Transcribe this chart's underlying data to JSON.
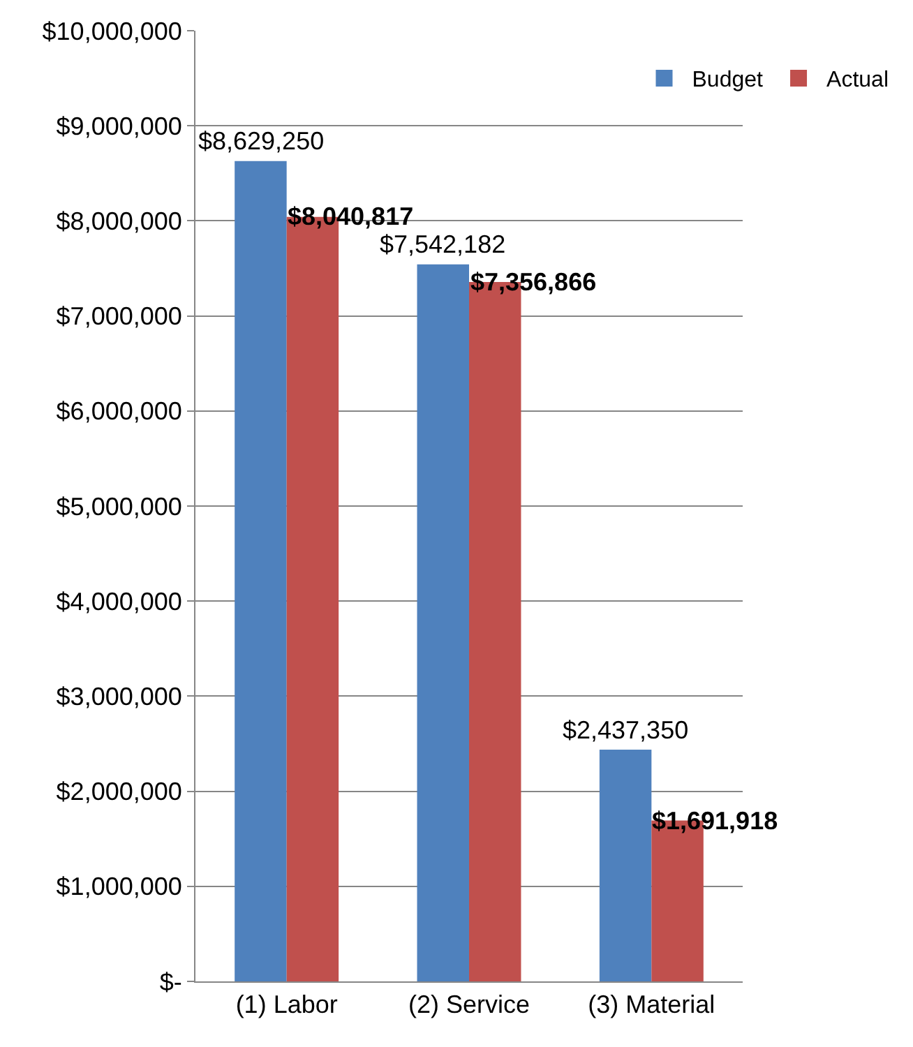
{
  "chart_data": {
    "type": "bar",
    "categories": [
      "(1) Labor",
      "(2) Service",
      "(3) Material"
    ],
    "series": [
      {
        "name": "Budget",
        "color": "#4f81bd",
        "values": [
          8629250,
          7542182,
          2437350
        ],
        "value_labels": [
          "$8,629,250",
          "$7,542,182",
          "$2,437,350"
        ]
      },
      {
        "name": "Actual",
        "color": "#c0504d",
        "values": [
          8040817,
          7356866,
          1691918
        ],
        "value_labels": [
          "$8,040,817",
          "$7,356,866",
          "$1,691,918"
        ]
      }
    ],
    "ylim": [
      0,
      10000000
    ],
    "yticks": [
      {
        "value": 0,
        "label": "$-"
      },
      {
        "value": 1000000,
        "label": "$1,000,000"
      },
      {
        "value": 2000000,
        "label": "$2,000,000"
      },
      {
        "value": 3000000,
        "label": "$3,000,000"
      },
      {
        "value": 4000000,
        "label": "$4,000,000"
      },
      {
        "value": 5000000,
        "label": "$5,000,000"
      },
      {
        "value": 6000000,
        "label": "$6,000,000"
      },
      {
        "value": 7000000,
        "label": "$7,000,000"
      },
      {
        "value": 8000000,
        "label": "$8,000,000"
      },
      {
        "value": 9000000,
        "label": "$9,000,000"
      },
      {
        "value": 10000000,
        "label": "$10,000,000"
      }
    ],
    "grid": "y",
    "legend": "top right"
  }
}
